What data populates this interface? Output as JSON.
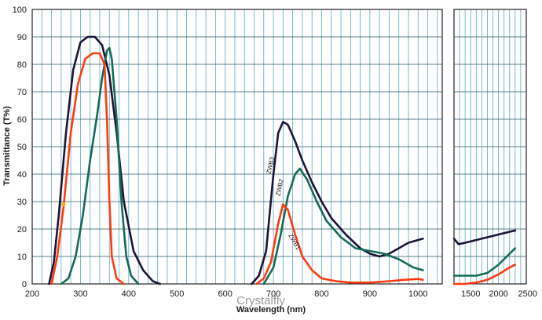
{
  "chart_data": {
    "type": "line",
    "ylabel": "Transmittance (T%)",
    "xlabel": "Wavelength (nm)",
    "watermark": "Crystalfly",
    "ylim": [
      0,
      100
    ],
    "yticks": [
      0,
      10,
      20,
      30,
      40,
      50,
      60,
      70,
      80,
      90,
      100
    ],
    "grid": true,
    "panels": [
      {
        "xlim": [
          200,
          1050
        ],
        "xticks": [
          200,
          300,
          400,
          500,
          600,
          700,
          800,
          900,
          1000
        ],
        "minor_step": 20
      },
      {
        "xlim": [
          1200,
          2500
        ],
        "xticks": [
          1500,
          2000,
          2500
        ],
        "minor_step": 100
      }
    ],
    "series": [
      {
        "name": "ZWB3",
        "color": "#1c1436",
        "segments": [
          [
            [
              235,
              0
            ],
            [
              245,
              8
            ],
            [
              255,
              25
            ],
            [
              270,
              55
            ],
            [
              285,
              78
            ],
            [
              300,
              88
            ],
            [
              315,
              90
            ],
            [
              330,
              90
            ],
            [
              345,
              87
            ],
            [
              360,
              76
            ],
            [
              375,
              55
            ],
            [
              390,
              30
            ],
            [
              410,
              12
            ],
            [
              430,
              5
            ],
            [
              450,
              1
            ],
            [
              465,
              0
            ]
          ],
          [
            [
              655,
              0
            ],
            [
              670,
              3
            ],
            [
              685,
              12
            ],
            [
              700,
              40
            ],
            [
              710,
              55
            ],
            [
              720,
              59
            ],
            [
              730,
              58
            ],
            [
              745,
              52
            ],
            [
              760,
              45
            ],
            [
              780,
              37
            ],
            [
              800,
              30
            ],
            [
              820,
              24
            ],
            [
              850,
              18
            ],
            [
              880,
              13
            ],
            [
              900,
              11
            ],
            [
              920,
              10
            ],
            [
              940,
              11
            ],
            [
              960,
              13
            ],
            [
              980,
              15
            ],
            [
              1000,
              16
            ],
            [
              1010,
              16.5
            ]
          ]
        ],
        "segments_ext": [
          [
            [
              1200,
              16.5
            ],
            [
              1280,
              14.5
            ],
            [
              1400,
              15
            ],
            [
              1600,
              16
            ],
            [
              1800,
              17
            ],
            [
              2000,
              18
            ],
            [
              2200,
              19
            ],
            [
              2300,
              19.5
            ]
          ]
        ]
      },
      {
        "name": "ZWB2",
        "color": "#146a58",
        "segments": [
          [
            [
              260,
              0
            ],
            [
              275,
              2
            ],
            [
              290,
              10
            ],
            [
              305,
              25
            ],
            [
              320,
              45
            ],
            [
              335,
              62
            ],
            [
              345,
              75
            ],
            [
              355,
              85
            ],
            [
              360,
              86
            ],
            [
              365,
              82
            ],
            [
              375,
              60
            ],
            [
              385,
              30
            ],
            [
              395,
              10
            ],
            [
              405,
              3
            ],
            [
              420,
              0
            ]
          ],
          [
            [
              680,
              0
            ],
            [
              700,
              6
            ],
            [
              715,
              18
            ],
            [
              730,
              32
            ],
            [
              745,
              40
            ],
            [
              755,
              42
            ],
            [
              770,
              38
            ],
            [
              790,
              30
            ],
            [
              810,
              23
            ],
            [
              840,
              17
            ],
            [
              870,
              13
            ],
            [
              900,
              12
            ],
            [
              930,
              11
            ],
            [
              960,
              9
            ],
            [
              990,
              6
            ],
            [
              1010,
              5
            ]
          ]
        ],
        "segments_ext": [
          [
            [
              1200,
              3
            ],
            [
              1400,
              3
            ],
            [
              1600,
              3
            ],
            [
              1800,
              4
            ],
            [
              2000,
              7
            ],
            [
              2150,
              10
            ],
            [
              2300,
              13
            ]
          ]
        ]
      },
      {
        "name": "ZWB1",
        "color": "#ff3a10",
        "segments": [
          [
            [
              240,
              0
            ],
            [
              252,
              10
            ],
            [
              265,
              28
            ],
            [
              280,
              55
            ],
            [
              295,
              73
            ],
            [
              310,
              82
            ],
            [
              325,
              84
            ],
            [
              340,
              84
            ],
            [
              350,
              80
            ],
            [
              355,
              60
            ],
            [
              360,
              30
            ],
            [
              365,
              10
            ],
            [
              375,
              2
            ],
            [
              390,
              0
            ]
          ],
          [
            [
              665,
              0
            ],
            [
              680,
              2
            ],
            [
              695,
              8
            ],
            [
              710,
              22
            ],
            [
              720,
              29
            ],
            [
              730,
              27
            ],
            [
              745,
              18
            ],
            [
              760,
              10
            ],
            [
              780,
              5
            ],
            [
              800,
              2
            ],
            [
              830,
              1
            ],
            [
              860,
              0.5
            ],
            [
              900,
              0.5
            ],
            [
              940,
              1
            ],
            [
              970,
              1.5
            ],
            [
              1000,
              1.8
            ],
            [
              1010,
              1.5
            ]
          ]
        ],
        "segments_ext": [
          [
            [
              1200,
              0
            ],
            [
              1400,
              0
            ],
            [
              1600,
              0.5
            ],
            [
              1800,
              1.5
            ],
            [
              2000,
              3.5
            ],
            [
              2200,
              6
            ],
            [
              2300,
              7
            ]
          ]
        ]
      }
    ],
    "markers": [
      {
        "x": 265,
        "y": 29,
        "color": "#ffb300"
      }
    ],
    "curve_labels": [
      {
        "text": "ZWB3",
        "x": 698,
        "y": 43
      },
      {
        "text": "ZWB2",
        "x": 717,
        "y": 35
      },
      {
        "text": "ZWB1",
        "x": 740,
        "y": 15
      }
    ]
  }
}
